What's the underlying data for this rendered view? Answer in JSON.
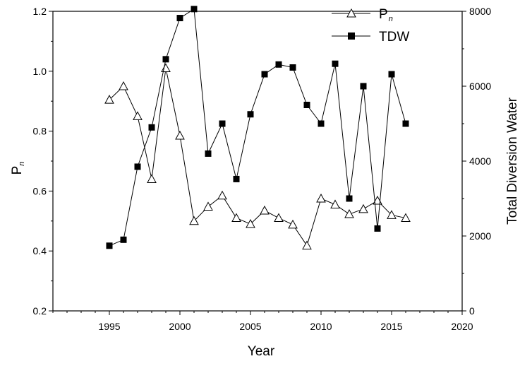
{
  "chart_data": {
    "type": "line",
    "xlabel": "Year",
    "ylabel_left": "P",
    "ylabel_left_subscript": "n",
    "ylabel_right": "Total Diversion Water",
    "xlim": [
      1991,
      2020
    ],
    "ylim_left": [
      0.2,
      1.2
    ],
    "ylim_right": [
      0,
      8000
    ],
    "x_ticks": [
      1995,
      2000,
      2005,
      2010,
      2015,
      2020
    ],
    "y_left_ticks": [
      "0.2",
      "0.4",
      "0.6",
      "0.8",
      "1.0",
      "1.2"
    ],
    "y_right_ticks": [
      "0",
      "2000",
      "4000",
      "6000",
      "8000"
    ],
    "grid": false,
    "legend_position": "top-right",
    "x": [
      1995,
      1996,
      1997,
      1998,
      1999,
      2000,
      2001,
      2002,
      2003,
      2004,
      2005,
      2006,
      2007,
      2008,
      2009,
      2010,
      2011,
      2012,
      2013,
      2014,
      2015,
      2016
    ],
    "series": [
      {
        "name": "P",
        "name_subscript": "n",
        "axis": "left",
        "marker": "open-triangle",
        "color": "#000000",
        "values": [
          0.905,
          0.95,
          0.85,
          0.64,
          1.01,
          0.785,
          0.5,
          0.548,
          0.585,
          0.51,
          0.49,
          0.535,
          0.51,
          0.488,
          0.418,
          0.575,
          0.555,
          0.523,
          0.54,
          0.568,
          0.52,
          0.51
        ]
      },
      {
        "name": "TDW",
        "axis": "right",
        "marker": "filled-square",
        "color": "#000000",
        "values": [
          1740,
          1900,
          3850,
          4900,
          6720,
          7820,
          8060,
          4200,
          5000,
          3520,
          5250,
          6320,
          6580,
          6500,
          5500,
          5000,
          6600,
          3000,
          6000,
          2200,
          6320,
          5000
        ]
      }
    ]
  }
}
